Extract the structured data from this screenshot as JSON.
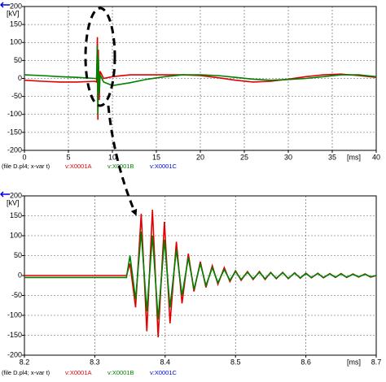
{
  "chart_data": [
    {
      "type": "line",
      "y_unit": "[kV]",
      "x_unit": "[ms]",
      "legend_title": "(file D.pl4; x-var t)",
      "x": [
        0,
        2,
        4,
        6,
        8,
        8.2,
        8.3,
        8.35,
        8.4,
        8.5,
        8.6,
        9,
        10,
        12,
        14,
        16,
        18,
        20,
        22,
        24,
        26,
        28,
        30,
        32,
        34,
        36,
        38,
        40
      ],
      "series": [
        {
          "name": "v:X0001A",
          "color": "#e00000",
          "values": [
            -5,
            -8,
            -10,
            -10,
            -8,
            -10,
            115,
            -115,
            80,
            -60,
            20,
            0,
            5,
            10,
            10,
            10,
            10,
            8,
            2,
            -5,
            -10,
            -8,
            -2,
            5,
            10,
            12,
            8,
            3
          ]
        },
        {
          "name": "v:X0001B",
          "color": "#008000",
          "values": [
            10,
            8,
            5,
            3,
            0,
            0,
            90,
            -100,
            60,
            -40,
            10,
            -10,
            -20,
            -12,
            -2,
            5,
            10,
            10,
            8,
            3,
            -2,
            -5,
            -3,
            0,
            5,
            10,
            10,
            5
          ]
        },
        {
          "name": "v:X0001C",
          "color": "#0000e0",
          "values": [
            null,
            null,
            null,
            null,
            null,
            null,
            null,
            null,
            null,
            null,
            null,
            null,
            null,
            null,
            null,
            null,
            null,
            null,
            null,
            null,
            null,
            null,
            null,
            null,
            null,
            null,
            null,
            null
          ]
        }
      ],
      "xlim": [
        0,
        40
      ],
      "xticks": [
        0,
        5,
        10,
        15,
        20,
        25,
        30,
        35,
        40
      ],
      "ylim": [
        -200,
        200
      ],
      "yticks": [
        -200,
        -150,
        -100,
        -50,
        0,
        50,
        100,
        150,
        200
      ],
      "grid": true
    },
    {
      "type": "line",
      "y_unit": "[kV]",
      "x_unit": "[ms]",
      "legend_title": "(file D.pl4; x-var t)",
      "x": [
        8.2,
        8.345,
        8.35,
        8.358,
        8.366,
        8.374,
        8.382,
        8.39,
        8.399,
        8.407,
        8.416,
        8.424,
        8.433,
        8.441,
        8.45,
        8.458,
        8.467,
        8.475,
        8.484,
        8.492,
        8.5,
        8.508,
        8.517,
        8.525,
        8.534,
        8.542,
        8.55,
        8.558,
        8.567,
        8.575,
        8.584,
        8.592,
        8.6,
        8.608,
        8.617,
        8.625,
        8.634,
        8.642,
        8.65,
        8.658,
        8.667,
        8.675,
        8.684,
        8.692,
        8.7
      ],
      "series": [
        {
          "name": "v:X0001A",
          "color": "#e00000",
          "values": [
            0,
            0,
            30,
            -80,
            155,
            -140,
            165,
            -155,
            135,
            -120,
            85,
            -70,
            55,
            -40,
            35,
            -30,
            25,
            -22,
            20,
            -15,
            12,
            -12,
            10,
            -10,
            10,
            -10,
            8,
            -8,
            8,
            -8,
            7,
            -7,
            6,
            -6,
            6,
            -6,
            5,
            -5,
            5,
            -5,
            4,
            -4,
            4,
            -4,
            0
          ]
        },
        {
          "name": "v:X0001B",
          "color": "#008000",
          "values": [
            -5,
            -5,
            50,
            -60,
            110,
            -90,
            100,
            -110,
            90,
            -80,
            65,
            -50,
            45,
            -35,
            30,
            -25,
            20,
            -18,
            15,
            -12,
            10,
            -10,
            8,
            -8,
            8,
            -8,
            7,
            -7,
            7,
            -7,
            6,
            -6,
            5,
            -5,
            5,
            -5,
            4,
            -4,
            4,
            -4,
            3,
            -3,
            3,
            -3,
            0
          ]
        },
        {
          "name": "v:X0001C",
          "color": "#0000e0",
          "values": [
            null,
            null,
            null,
            null,
            null,
            null,
            null,
            null,
            null,
            null,
            null,
            null,
            null,
            null,
            null,
            null,
            null,
            null,
            null,
            null,
            null,
            null,
            null,
            null,
            null,
            null,
            null,
            null,
            null,
            null,
            null,
            null,
            null,
            null,
            null,
            null,
            null,
            null,
            null,
            null,
            null,
            null,
            null,
            null,
            null
          ]
        }
      ],
      "xlim": [
        8.2,
        8.7
      ],
      "xticks": [
        8.2,
        8.3,
        8.4,
        8.5,
        8.6,
        8.7
      ],
      "ylim": [
        -200,
        200
      ],
      "yticks": [
        -200,
        -150,
        -100,
        -50,
        0,
        50,
        100,
        150,
        200
      ],
      "grid": true
    }
  ]
}
